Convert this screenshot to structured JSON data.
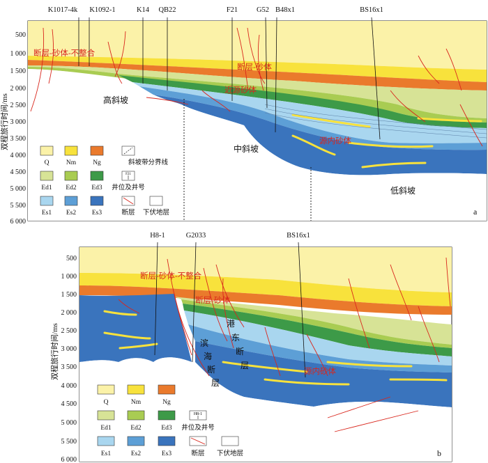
{
  "panel_a": {
    "label": "a",
    "y_axis_label": "双程旅行时间/ms",
    "y_ticks": [
      "500",
      "1 000",
      "1 500",
      "2 000",
      "2 500",
      "3 000",
      "3 500",
      "4 000",
      "4 500",
      "5 000",
      "5 500",
      "6 000"
    ],
    "wells": [
      "K1017-4k",
      "K1092-1",
      "K14",
      "QB22",
      "F21",
      "G52",
      "B48x1",
      "BS16x1"
    ],
    "annotations": {
      "unconformity": "断层-砂体-不整合",
      "fault_sand": "断层-砂体",
      "near_sand": "近源砂体",
      "far_sand": "源内砂体"
    },
    "zones": {
      "high": "高斜坡",
      "mid": "中斜坡",
      "low": "低斜坡"
    }
  },
  "panel_b": {
    "label": "b",
    "y_axis_label": "双程旅行时间/ms",
    "y_ticks": [
      "500",
      "1 000",
      "1 500",
      "2 000",
      "2 500",
      "3 000",
      "3 500",
      "4 000",
      "4 500",
      "5 000",
      "5 500",
      "6 000"
    ],
    "wells": [
      "H8-1",
      "G2033",
      "BS16x1"
    ],
    "annotations": {
      "unconformity": "断层-砂体-不整合",
      "fault_sand": "断层-砂体",
      "far_sand": "源内砂体"
    },
    "fault_names": {
      "binhai": [
        "滨",
        "海",
        "断",
        "层"
      ],
      "gangdong": [
        "港",
        "东",
        "断",
        "层"
      ]
    }
  },
  "legend": {
    "items": [
      "Q",
      "Nm",
      "Ng",
      "斜坡带分界线",
      "Ed1",
      "Ed2",
      "Ed3",
      "井位及井号",
      "Es1",
      "Es2",
      "Es3",
      "断层",
      "下伏地层"
    ],
    "well_a": "F21",
    "well_b": "H8-1",
    "colors": {
      "Q": "#fbf2a8",
      "Nm": "#f8e23c",
      "Ng": "#ea7a2c",
      "Ed1": "#d7e396",
      "Ed2": "#a9cc52",
      "Ed3": "#3d9a48",
      "Es1": "#a9d6ef",
      "Es2": "#5d9fd6",
      "Es3": "#3a74bd"
    }
  }
}
